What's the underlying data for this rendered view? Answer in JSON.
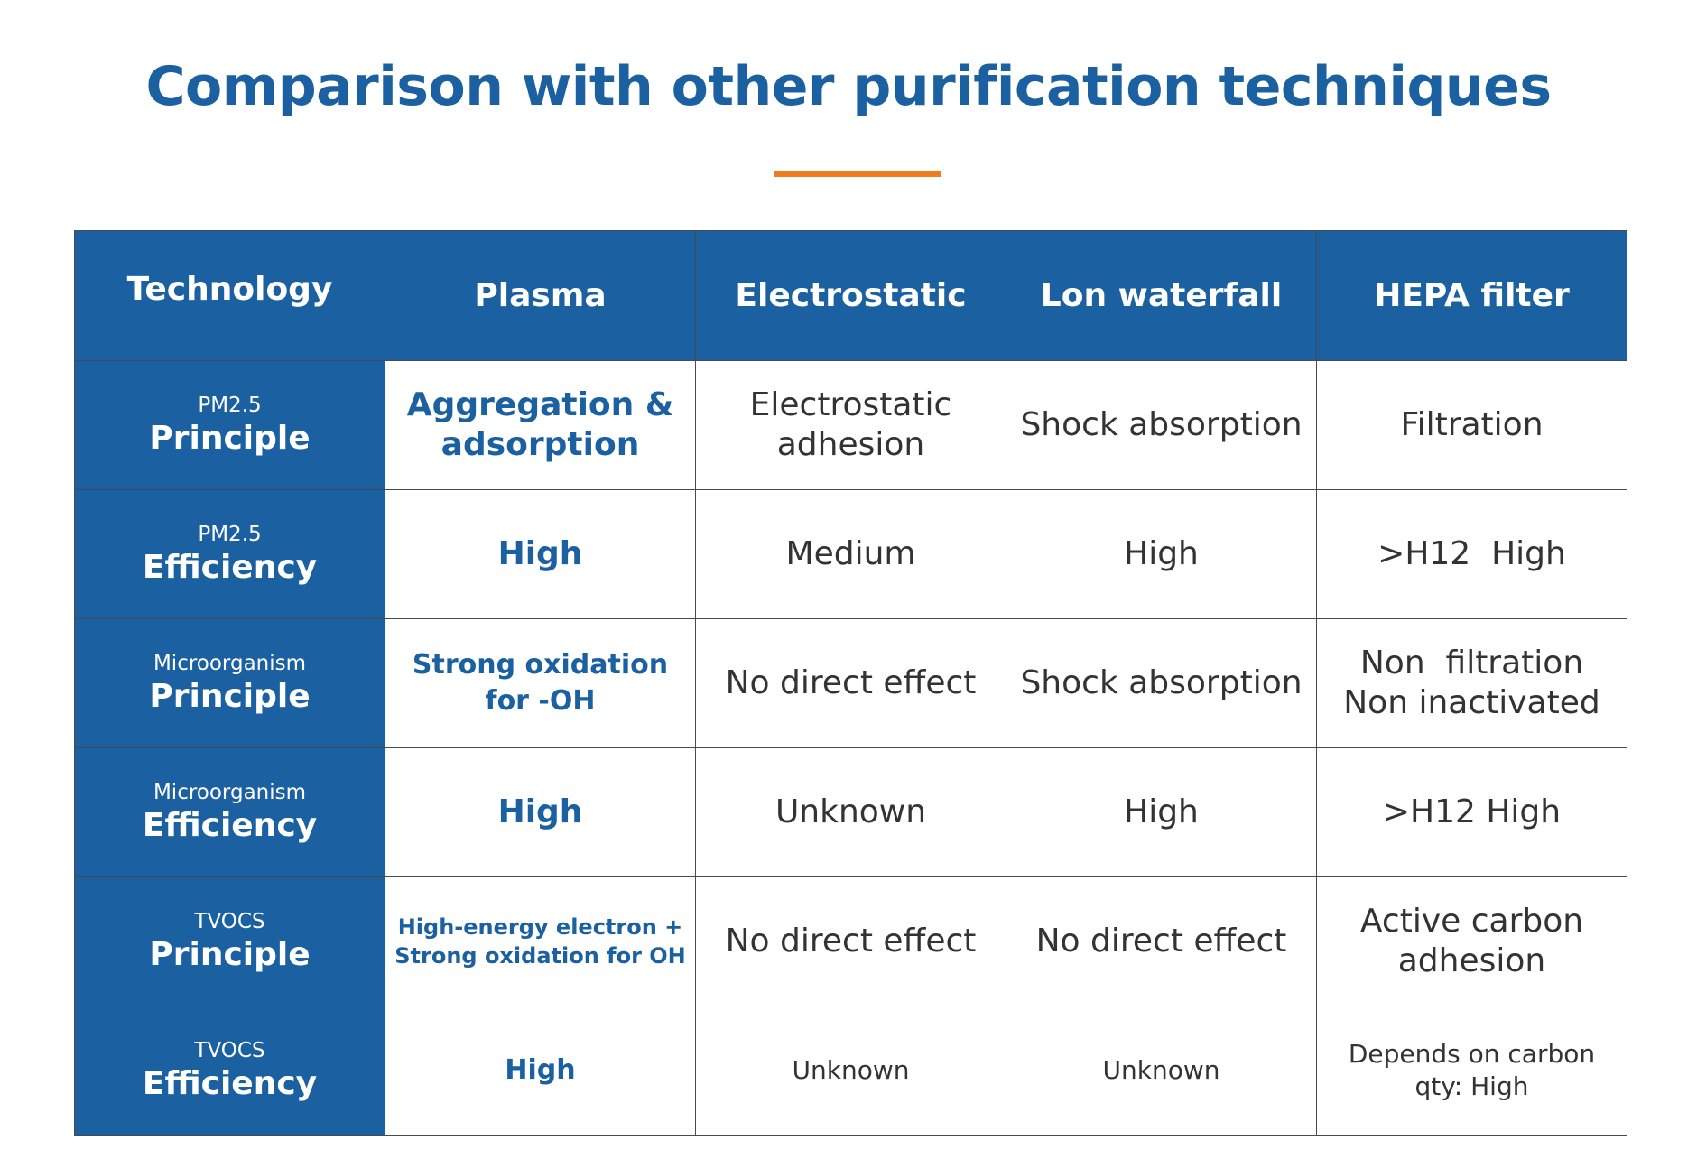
{
  "title": "Comparison with other purification techniques",
  "colors": {
    "primary_blue": "#1b60a0",
    "accent_orange": "#ef7d1f",
    "body_text": "#333333",
    "border": "#4a4a4a"
  },
  "table": {
    "headers": [
      "Technology",
      "Plasma",
      "Electrostatic",
      "Lon waterfall",
      "HEPA filter"
    ],
    "rows": [
      {
        "label_sub": "PM2.5",
        "label_main": "Principle",
        "plasma": [
          "Aggregation &",
          "adsorption"
        ],
        "electrostatic": [
          "Electrostatic",
          "adhesion"
        ],
        "lon_waterfall": [
          "Shock absorption"
        ],
        "hepa": [
          "Filtration"
        ]
      },
      {
        "label_sub": "PM2.5",
        "label_main": "Efficiency",
        "plasma": [
          "High"
        ],
        "electrostatic": [
          "Medium"
        ],
        "lon_waterfall": [
          "High"
        ],
        "hepa": [
          ">H12  High"
        ]
      },
      {
        "label_sub": "Microorganism",
        "label_main": "Principle",
        "plasma": [
          "Strong oxidation",
          "for -OH"
        ],
        "electrostatic": [
          "No direct effect"
        ],
        "lon_waterfall": [
          "Shock absorption"
        ],
        "hepa": [
          "Non  filtration",
          "Non inactivated"
        ]
      },
      {
        "label_sub": "Microorganism",
        "label_main": "Efficiency",
        "plasma": [
          "High"
        ],
        "electrostatic": [
          "Unknown"
        ],
        "lon_waterfall": [
          "High"
        ],
        "hepa": [
          ">H12 High"
        ]
      },
      {
        "label_sub": "TVOCS",
        "label_main": "Principle",
        "plasma": [
          "High-energy electron +",
          "Strong oxidation for OH"
        ],
        "electrostatic": [
          "No direct effect"
        ],
        "lon_waterfall": [
          "No direct effect"
        ],
        "hepa": [
          "Active carbon",
          "adhesion"
        ]
      },
      {
        "label_sub": "TVOCS",
        "label_main": "Efficiency",
        "plasma": [
          "High"
        ],
        "electrostatic": [
          "Unknown"
        ],
        "lon_waterfall": [
          "Unknown"
        ],
        "hepa": [
          "Depends on carbon",
          "qty: High"
        ]
      }
    ]
  }
}
